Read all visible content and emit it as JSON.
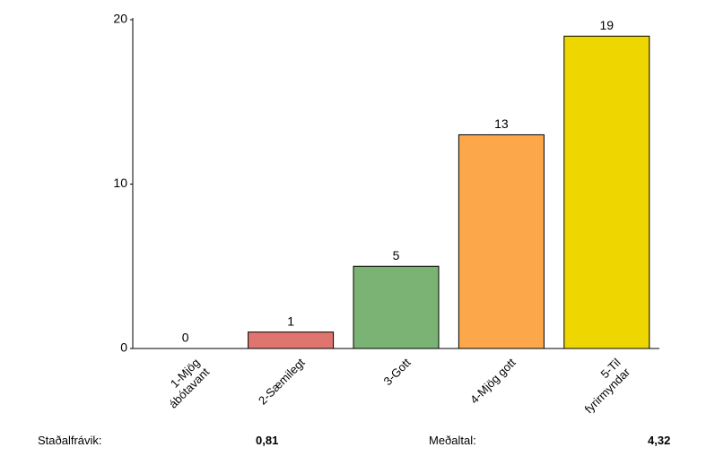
{
  "chart_data": {
    "type": "bar",
    "categories": [
      "1-Mjög ábótavant",
      "2-Sæmilegt",
      "3-Gott",
      "4-Mjög gott",
      "5-Til fyrirmyndar"
    ],
    "values": [
      0,
      1,
      5,
      13,
      19
    ],
    "colors": [
      "#7a9fd6",
      "#e07570",
      "#7ab373",
      "#fca84a",
      "#eed700"
    ],
    "ylim": [
      0,
      20
    ],
    "yticks": [
      0,
      10,
      20
    ],
    "grid": false
  },
  "stats": {
    "std_label": "Staðalfrávik:",
    "std_value": "0,81",
    "mean_label": "Meðaltal:",
    "mean_value": "4,32"
  }
}
